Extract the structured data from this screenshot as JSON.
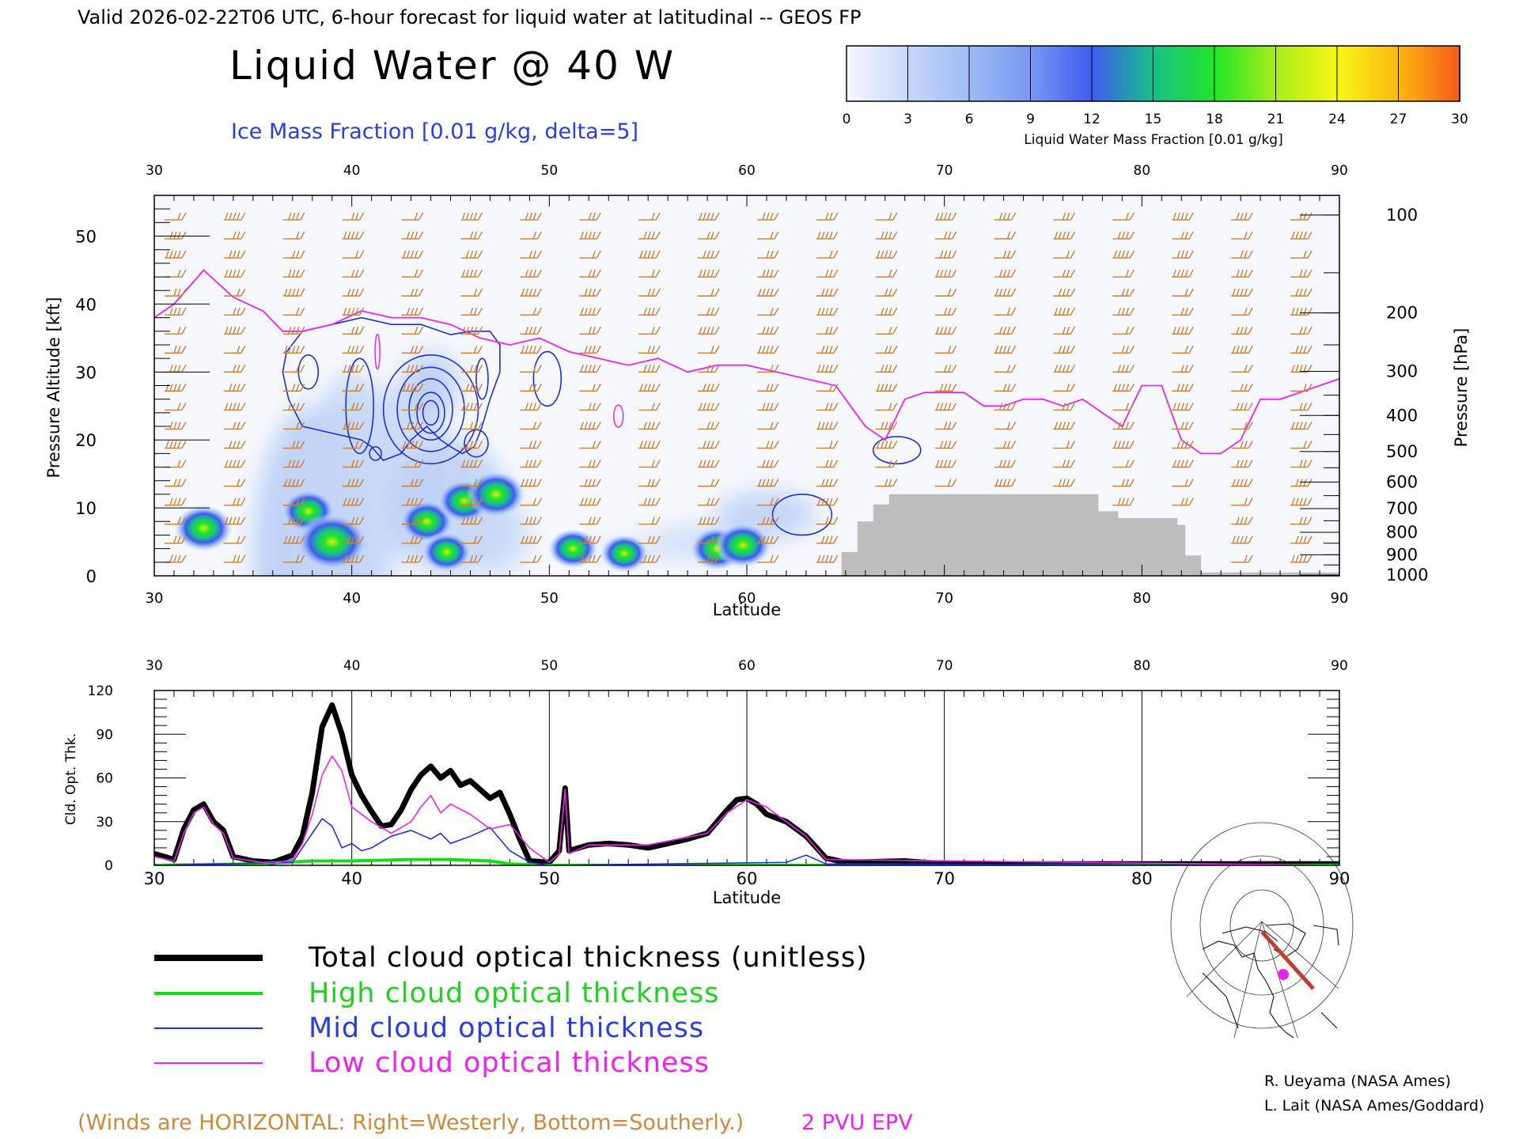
{
  "header": {
    "valid_line": "Valid 2026-02-22T06 UTC, 6-hour forecast for liquid water at latitudinal -- GEOS FP",
    "title": "Liquid Water @ 40 W",
    "subtitle": "Ice Mass Fraction [0.01 g/kg, delta=5]"
  },
  "colorbar": {
    "label": "Liquid Water Mass Fraction [0.01 g/kg]",
    "ticks": [
      "0",
      "3",
      "6",
      "9",
      "12",
      "15",
      "18",
      "21",
      "24",
      "27",
      "30"
    ],
    "colors": [
      "#f4f7fe",
      "#c8d8fa",
      "#9dbcf6",
      "#7898f2",
      "#3d5cf0",
      "#1abf88",
      "#1ee628",
      "#a8ee1a",
      "#f7f716",
      "#fcb810",
      "#f55a1c"
    ]
  },
  "colors": {
    "ice_contour": "#1f2fd8",
    "epv_line": "#ee22ee",
    "wind_barb": "#cd7f32",
    "terrain": "#bdbdbd",
    "total_line": "#000000",
    "high_line": "#10e010",
    "mid_line": "#2030e0",
    "low_line": "#ee22ee"
  },
  "chart_data": [
    {
      "type": "heatmap",
      "xlabel": "Latitude",
      "ylabel": "Pressure Altitude [kft]",
      "ylabel_right": "Pressure [hPa]",
      "xlim": [
        30,
        90
      ],
      "ylim": [
        0,
        56
      ],
      "x_ticks": [
        "30",
        "40",
        "50",
        "60",
        "70",
        "80",
        "90"
      ],
      "y_ticks": [
        "0",
        "10",
        "20",
        "30",
        "40",
        "50"
      ],
      "pressure_ticks": [
        {
          "label": "100",
          "kft": 53.1
        },
        {
          "label": "200",
          "kft": 38.7
        },
        {
          "label": "300",
          "kft": 30.1
        },
        {
          "label": "400",
          "kft": 23.6
        },
        {
          "label": "500",
          "kft": 18.3
        },
        {
          "label": "600",
          "kft": 13.8
        },
        {
          "label": "700",
          "kft": 9.9
        },
        {
          "label": "800",
          "kft": 6.4
        },
        {
          "label": "900",
          "kft": 3.1
        },
        {
          "label": "1000",
          "kft": 0.1
        }
      ],
      "liquid_water_blobs": [
        {
          "lat": 32.5,
          "kft": 7.0,
          "peak": 18
        },
        {
          "lat": 37.8,
          "kft": 9.5,
          "peak": 16
        },
        {
          "lat": 39.0,
          "kft": 5.0,
          "peak": 24
        },
        {
          "lat": 43.8,
          "kft": 8.0,
          "peak": 16
        },
        {
          "lat": 44.8,
          "kft": 3.5,
          "peak": 14
        },
        {
          "lat": 45.7,
          "kft": 11.0,
          "peak": 16
        },
        {
          "lat": 47.3,
          "kft": 12.0,
          "peak": 18
        },
        {
          "lat": 51.2,
          "kft": 4.0,
          "peak": 14
        },
        {
          "lat": 53.8,
          "kft": 3.3,
          "peak": 13
        },
        {
          "lat": 58.5,
          "kft": 4.0,
          "peak": 16
        },
        {
          "lat": 59.8,
          "kft": 4.5,
          "peak": 17
        }
      ],
      "epv_2pvu_kft": [
        [
          30,
          38
        ],
        [
          31,
          40
        ],
        [
          32.5,
          45
        ],
        [
          34,
          41
        ],
        [
          35.5,
          39
        ],
        [
          36.5,
          36
        ],
        [
          37.5,
          36
        ],
        [
          39,
          37
        ],
        [
          40.5,
          39
        ],
        [
          42,
          38
        ],
        [
          43.5,
          38
        ],
        [
          45,
          37
        ],
        [
          46.5,
          35
        ],
        [
          48,
          34
        ],
        [
          49.5,
          35
        ],
        [
          51,
          33
        ],
        [
          52.5,
          32
        ],
        [
          54,
          31
        ],
        [
          55.5,
          32
        ],
        [
          57,
          30
        ],
        [
          58.5,
          31
        ],
        [
          60,
          31
        ],
        [
          61.5,
          30
        ],
        [
          63,
          29
        ],
        [
          64.5,
          28
        ],
        [
          66,
          22
        ],
        [
          67,
          20
        ],
        [
          68,
          26
        ],
        [
          69,
          27
        ],
        [
          70,
          27
        ],
        [
          71,
          27
        ],
        [
          72,
          25
        ],
        [
          73,
          25
        ],
        [
          74,
          26
        ],
        [
          75,
          26
        ],
        [
          76,
          25
        ],
        [
          77,
          26
        ],
        [
          78,
          24
        ],
        [
          79,
          22
        ],
        [
          80,
          28
        ],
        [
          81,
          28
        ],
        [
          82,
          20
        ],
        [
          83,
          18
        ],
        [
          84,
          18
        ],
        [
          85,
          20
        ],
        [
          86,
          26
        ],
        [
          87,
          26
        ],
        [
          88,
          27
        ],
        [
          89,
          28
        ],
        [
          90,
          29
        ]
      ],
      "terrain_kft": [
        [
          30,
          0
        ],
        [
          64.8,
          0
        ],
        [
          64.8,
          3.5
        ],
        [
          65.6,
          3.5
        ],
        [
          65.6,
          8
        ],
        [
          66.4,
          8
        ],
        [
          66.4,
          10.5
        ],
        [
          67.2,
          10.5
        ],
        [
          67.2,
          12
        ],
        [
          77.8,
          12
        ],
        [
          77.8,
          9.5
        ],
        [
          78.8,
          9.5
        ],
        [
          78.8,
          8.5
        ],
        [
          81.8,
          8.5
        ],
        [
          81.8,
          7.5
        ],
        [
          82.2,
          7.5
        ],
        [
          82.2,
          3
        ],
        [
          83.0,
          3
        ],
        [
          83.0,
          0.5
        ],
        [
          90,
          0.5
        ]
      ],
      "wind_barbs_column_lat": [
        31,
        34,
        37,
        40,
        43,
        46,
        49,
        52,
        55,
        58,
        61,
        64,
        67,
        70,
        73,
        76,
        79,
        82,
        85,
        88
      ]
    },
    {
      "type": "line",
      "xlabel": "Latitude",
      "ylabel": "Cld. Opt. Thk.",
      "xlim": [
        30,
        90
      ],
      "ylim": [
        0,
        120
      ],
      "x_ticks": [
        "30",
        "40",
        "50",
        "60",
        "70",
        "80",
        "90"
      ],
      "y_ticks": [
        "0",
        "30",
        "60",
        "90",
        "120"
      ],
      "series": [
        {
          "name": "Total cloud optical thickness (unitless)",
          "x": [
            30,
            31,
            31.5,
            32,
            32.5,
            33,
            33.5,
            34,
            35,
            36,
            37,
            37.5,
            38,
            38.5,
            39,
            39.5,
            40,
            40.5,
            41,
            41.5,
            42,
            42.5,
            43,
            43.5,
            44,
            44.5,
            45,
            45.5,
            46,
            46.5,
            47,
            47.5,
            48,
            48.5,
            49,
            50,
            50.5,
            50.8,
            51,
            51.5,
            52,
            53,
            54,
            55,
            56,
            57,
            58,
            58.5,
            59,
            59.5,
            60,
            60.5,
            61,
            62,
            63,
            64,
            65,
            68,
            70,
            75,
            80,
            85,
            90
          ],
          "values": [
            8,
            4,
            25,
            38,
            42,
            30,
            24,
            6,
            3,
            2,
            7,
            20,
            50,
            95,
            110,
            90,
            62,
            48,
            37,
            27,
            28,
            38,
            52,
            62,
            68,
            60,
            65,
            55,
            58,
            52,
            46,
            50,
            35,
            18,
            3,
            2,
            10,
            53,
            10,
            12,
            14,
            15,
            14,
            12,
            15,
            18,
            22,
            30,
            38,
            45,
            46,
            42,
            35,
            30,
            20,
            5,
            2,
            3,
            1,
            1,
            1,
            1,
            1
          ]
        },
        {
          "name": "High cloud optical thickness",
          "x": [
            30,
            35,
            38,
            40,
            43,
            45,
            47,
            48,
            50,
            90
          ],
          "values": [
            0,
            1,
            3,
            3,
            4,
            4,
            3,
            1,
            0,
            0
          ]
        },
        {
          "name": "Mid cloud optical thickness",
          "x": [
            30,
            37,
            38,
            38.5,
            39,
            39.5,
            40,
            40.5,
            41,
            42,
            43,
            44,
            44.5,
            45,
            46,
            47,
            48,
            49,
            50,
            62,
            63,
            64,
            90
          ],
          "values": [
            0,
            2,
            22,
            32,
            27,
            12,
            15,
            10,
            12,
            20,
            24,
            18,
            22,
            15,
            20,
            26,
            10,
            2,
            0,
            2,
            7,
            1,
            0
          ]
        },
        {
          "name": "Low cloud optical thickness",
          "x": [
            30,
            31,
            31.5,
            32,
            32.5,
            33,
            33.5,
            34,
            36,
            37,
            37.5,
            38,
            38.5,
            39,
            39.5,
            40,
            41,
            42,
            43,
            43.5,
            44,
            44.5,
            45,
            46,
            47,
            48,
            49,
            50,
            50.5,
            50.8,
            51,
            52,
            55,
            58,
            59,
            60,
            61,
            62,
            63,
            64,
            90
          ],
          "values": [
            6,
            3,
            22,
            36,
            40,
            28,
            22,
            5,
            1,
            4,
            15,
            35,
            62,
            75,
            65,
            40,
            30,
            22,
            30,
            40,
            48,
            36,
            42,
            35,
            25,
            28,
            12,
            2,
            8,
            52,
            8,
            14,
            14,
            22,
            36,
            45,
            40,
            30,
            20,
            4,
            0
          ]
        }
      ]
    }
  ],
  "legend": {
    "total": "Total cloud optical thickness (unitless)",
    "high": "High cloud optical thickness",
    "mid": "Mid cloud optical thickness",
    "low": "Low cloud optical thickness"
  },
  "footer": {
    "winds_note": "(Winds are HORIZONTAL: Right=Westerly, Bottom=Southerly.)",
    "epv_label": "2 PVU EPV",
    "credit_1": "R. Ueyama (NASA Ames)",
    "credit_2": "L. Lait (NASA Ames/Goddard)"
  }
}
